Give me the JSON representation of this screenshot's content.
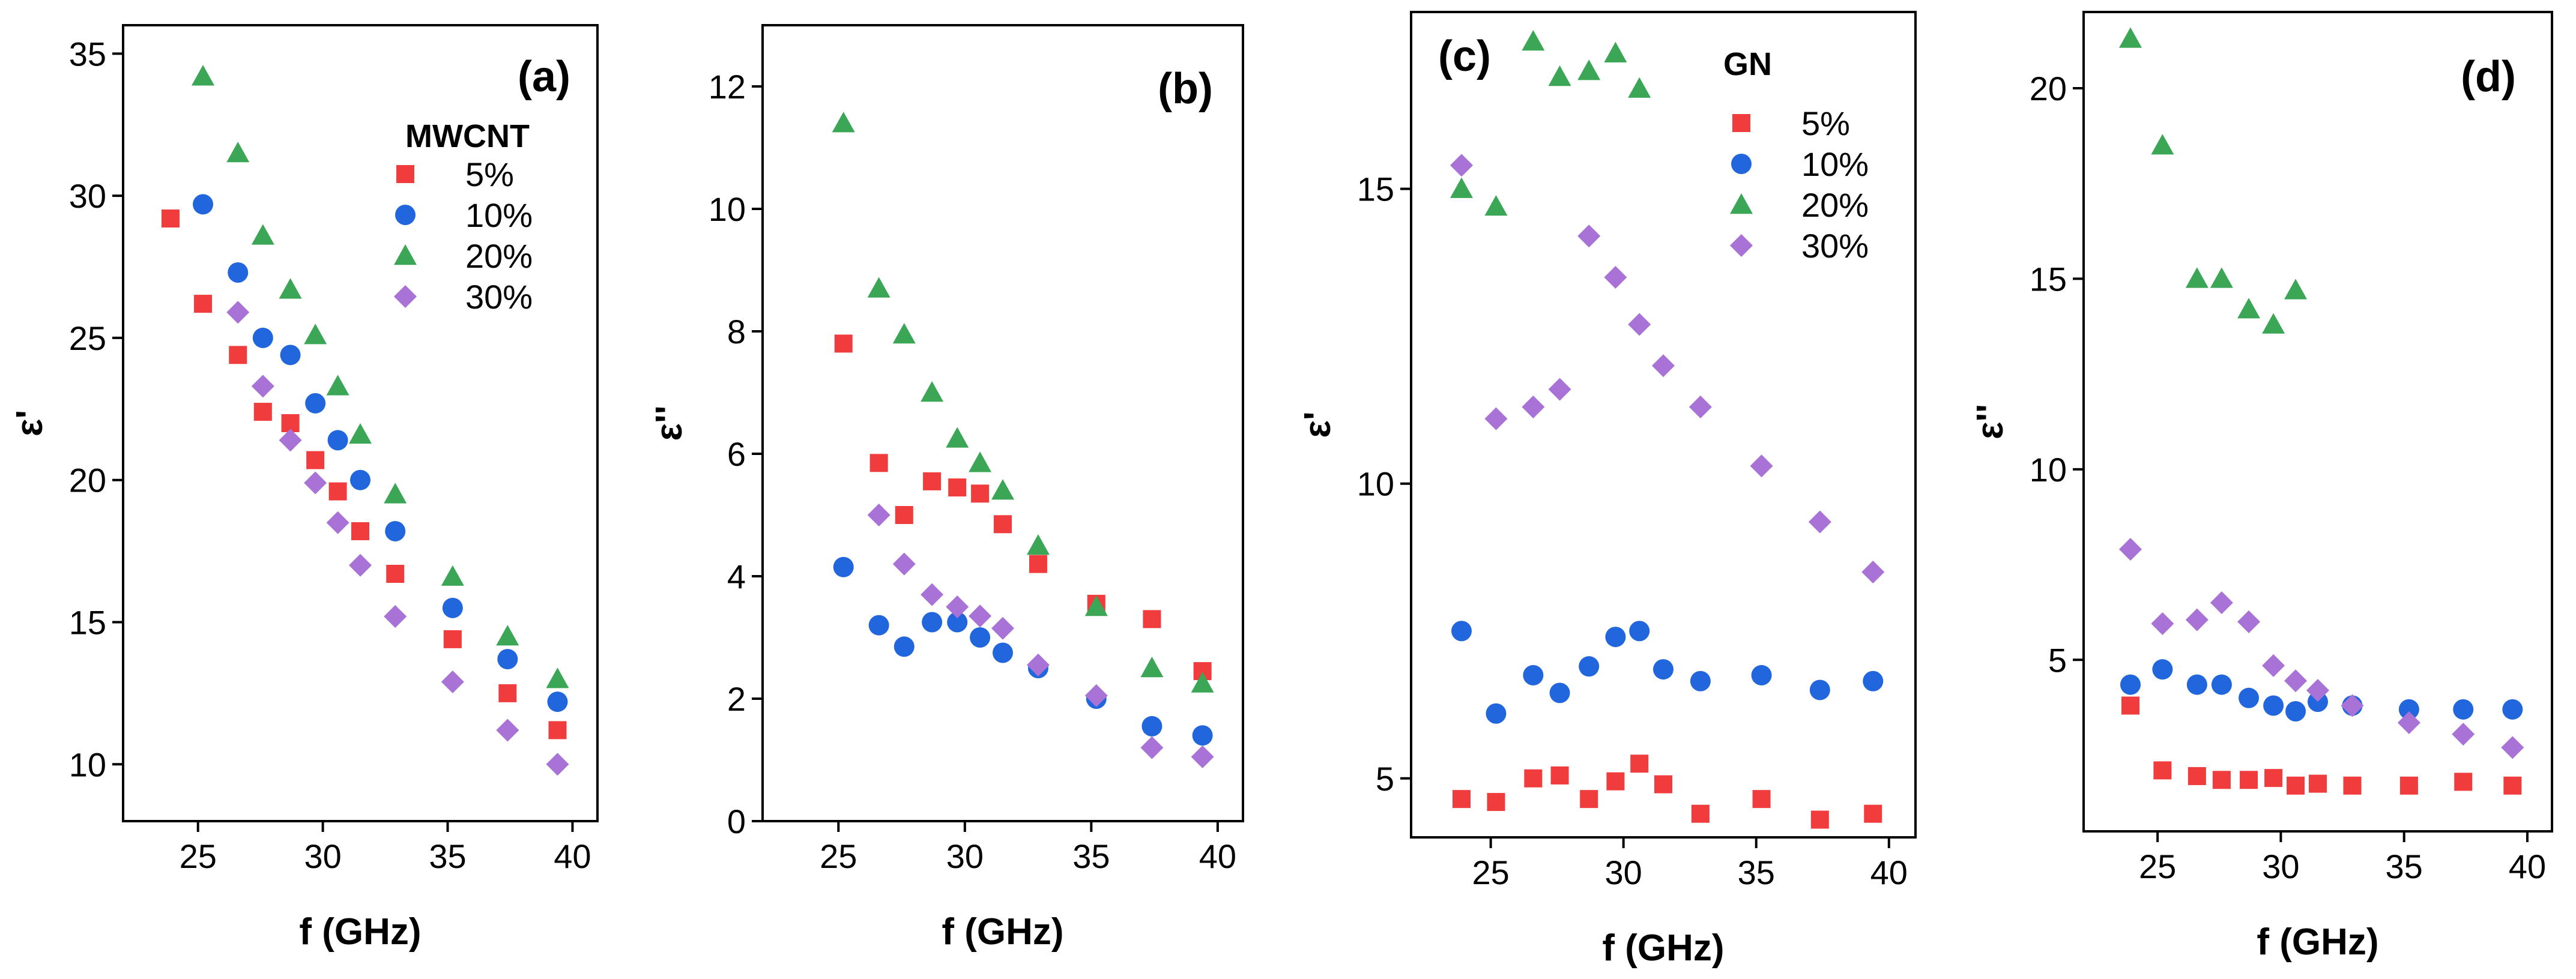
{
  "chart_data": [
    {
      "type": "scatter",
      "panel_label": "(a)",
      "xlabel": "f (GHz)",
      "ylabel": "ε'",
      "xlim": [
        22,
        41
      ],
      "ylim": [
        8,
        36
      ],
      "xticks": [
        "25",
        "30",
        "35",
        "40"
      ],
      "yticks": [
        "10",
        "15",
        "20",
        "25",
        "30",
        "35"
      ],
      "legend": {
        "title": "MWCNT",
        "entries": [
          "5%",
          "10%",
          "20%",
          "30%"
        ]
      },
      "series": [
        {
          "name": "5%",
          "marker": "square",
          "color": "#f03c3c",
          "x": [
            23.9,
            25.2,
            26.6,
            27.6,
            28.7,
            29.7,
            30.6,
            31.5,
            32.9,
            35.2,
            37.4,
            39.4
          ],
          "y": [
            29.2,
            26.2,
            24.4,
            22.4,
            22.0,
            20.7,
            19.6,
            18.2,
            16.7,
            14.4,
            12.5,
            11.2
          ]
        },
        {
          "name": "10%",
          "marker": "circle",
          "color": "#2266dd",
          "x": [
            25.2,
            26.6,
            27.6,
            28.7,
            29.7,
            30.6,
            31.5,
            32.9,
            35.2,
            37.4,
            39.4
          ],
          "y": [
            29.7,
            27.3,
            25.0,
            24.4,
            22.7,
            21.4,
            20.0,
            18.2,
            15.5,
            13.7,
            12.2
          ]
        },
        {
          "name": "20%",
          "marker": "triangle",
          "color": "#3aa656",
          "x": [
            25.2,
            26.6,
            27.6,
            28.7,
            29.7,
            30.6,
            31.5,
            32.9,
            35.2,
            37.4,
            39.4
          ],
          "y": [
            34.2,
            31.5,
            28.6,
            26.7,
            25.1,
            23.3,
            21.6,
            19.5,
            16.6,
            14.5,
            13.0
          ]
        },
        {
          "name": "30%",
          "marker": "diamond",
          "color": "#a872d6",
          "x": [
            26.6,
            27.6,
            28.7,
            29.7,
            30.6,
            31.5,
            32.9,
            35.2,
            37.4,
            39.4
          ],
          "y": [
            25.9,
            23.3,
            21.4,
            19.9,
            18.5,
            17.0,
            15.2,
            12.9,
            11.2,
            10.0
          ]
        }
      ]
    },
    {
      "type": "scatter",
      "panel_label": "(b)",
      "xlabel": "f (GHz)",
      "ylabel": "ε''",
      "xlim": [
        22,
        41
      ],
      "ylim": [
        0,
        13
      ],
      "xticks": [
        "25",
        "30",
        "35",
        "40"
      ],
      "yticks": [
        "0",
        "2",
        "4",
        "6",
        "8",
        "10",
        "12"
      ],
      "series": [
        {
          "name": "5%",
          "marker": "square",
          "color": "#f03c3c",
          "x": [
            25.2,
            26.6,
            27.6,
            28.7,
            29.7,
            30.6,
            31.5,
            32.9,
            35.2,
            37.4,
            39.4
          ],
          "y": [
            7.8,
            5.85,
            5.0,
            5.55,
            5.45,
            5.35,
            4.85,
            4.2,
            3.55,
            3.3,
            2.45
          ]
        },
        {
          "name": "10%",
          "marker": "circle",
          "color": "#2266dd",
          "x": [
            25.2,
            26.6,
            27.6,
            28.7,
            29.7,
            30.6,
            31.5,
            32.9,
            35.2,
            37.4,
            39.4
          ],
          "y": [
            4.15,
            3.2,
            2.85,
            3.25,
            3.25,
            3.0,
            2.75,
            2.5,
            2.0,
            1.55,
            1.4
          ]
        },
        {
          "name": "20%",
          "marker": "triangle",
          "color": "#3aa656",
          "x": [
            25.2,
            26.6,
            27.6,
            28.7,
            29.7,
            30.6,
            31.5,
            32.9,
            35.2,
            37.4,
            39.4
          ],
          "y": [
            11.4,
            8.7,
            7.95,
            7.0,
            6.25,
            5.85,
            5.4,
            4.5,
            3.5,
            2.5,
            2.25
          ]
        },
        {
          "name": "30%",
          "marker": "diamond",
          "color": "#a872d6",
          "x": [
            26.6,
            27.6,
            28.7,
            29.7,
            30.6,
            31.5,
            32.9,
            35.2,
            37.4,
            39.4
          ],
          "y": [
            5.0,
            4.2,
            3.7,
            3.5,
            3.35,
            3.15,
            2.55,
            2.05,
            1.2,
            1.05
          ]
        }
      ]
    },
    {
      "type": "scatter",
      "panel_label": "(c)",
      "xlabel": "f (GHz)",
      "ylabel": "ε'",
      "xlim": [
        22,
        41
      ],
      "ylim": [
        4,
        18
      ],
      "xticks": [
        "25",
        "30",
        "35",
        "40"
      ],
      "yticks": [
        "5",
        "10",
        "15"
      ],
      "legend": {
        "title": "GN",
        "entries": [
          "5%",
          "10%",
          "20%",
          "30%"
        ]
      },
      "series": [
        {
          "name": "5%",
          "marker": "square",
          "color": "#f03c3c",
          "x": [
            23.9,
            25.2,
            26.6,
            27.6,
            28.7,
            29.7,
            30.6,
            31.5,
            32.9,
            35.2,
            37.4,
            39.4
          ],
          "y": [
            4.65,
            4.6,
            5.0,
            5.05,
            4.65,
            4.95,
            5.25,
            4.9,
            4.4,
            4.65,
            4.3,
            4.4
          ]
        },
        {
          "name": "10%",
          "marker": "circle",
          "color": "#2266dd",
          "x": [
            23.9,
            25.2,
            26.6,
            27.6,
            28.7,
            29.7,
            30.6,
            31.5,
            32.9,
            35.2,
            37.4,
            39.4
          ],
          "y": [
            7.5,
            6.1,
            6.75,
            6.45,
            6.9,
            7.4,
            7.5,
            6.85,
            6.65,
            6.75,
            6.5,
            6.65
          ]
        },
        {
          "name": "20%",
          "marker": "triangle",
          "color": "#3aa656",
          "x": [
            23.9,
            25.2,
            26.6,
            27.6,
            28.7,
            29.7,
            30.6
          ],
          "y": [
            15.0,
            14.7,
            17.5,
            16.9,
            17.0,
            17.3,
            16.7
          ]
        },
        {
          "name": "30%",
          "marker": "diamond",
          "color": "#a872d6",
          "x": [
            23.9,
            25.2,
            26.6,
            27.6,
            28.7,
            29.7,
            30.6,
            31.5,
            32.9,
            35.2,
            37.4,
            39.4
          ],
          "y": [
            15.4,
            11.1,
            11.3,
            11.6,
            14.2,
            13.5,
            12.7,
            12.0,
            11.3,
            10.3,
            9.35,
            8.5
          ]
        }
      ]
    },
    {
      "type": "scatter",
      "panel_label": "(d)",
      "xlabel": "f (GHz)",
      "ylabel": "ε''",
      "xlim": [
        22,
        41
      ],
      "ylim": [
        0.5,
        22
      ],
      "xticks": [
        "25",
        "30",
        "35",
        "40"
      ],
      "yticks": [
        "5",
        "10",
        "15",
        "20"
      ],
      "series": [
        {
          "name": "5%",
          "marker": "square",
          "color": "#f03c3c",
          "x": [
            23.9,
            25.2,
            26.6,
            27.6,
            28.7,
            29.7,
            30.6,
            31.5,
            32.9,
            35.2,
            37.4,
            39.4
          ],
          "y": [
            3.8,
            2.1,
            1.95,
            1.85,
            1.85,
            1.9,
            1.7,
            1.75,
            1.7,
            1.7,
            1.8,
            1.7
          ]
        },
        {
          "name": "10%",
          "marker": "circle",
          "color": "#2266dd",
          "x": [
            23.9,
            25.2,
            26.6,
            27.6,
            28.7,
            29.7,
            30.6,
            31.5,
            32.9,
            35.2,
            37.4,
            39.4
          ],
          "y": [
            4.35,
            4.75,
            4.35,
            4.35,
            4.0,
            3.8,
            3.65,
            3.9,
            3.8,
            3.7,
            3.7,
            3.7
          ]
        },
        {
          "name": "20%",
          "marker": "triangle",
          "color": "#3aa656",
          "x": [
            23.9,
            25.2,
            26.6,
            27.6,
            28.7,
            29.7,
            30.6
          ],
          "y": [
            21.3,
            18.5,
            15.0,
            15.0,
            14.2,
            13.8,
            14.7
          ]
        },
        {
          "name": "30%",
          "marker": "diamond",
          "color": "#a872d6",
          "x": [
            23.9,
            25.2,
            26.6,
            27.6,
            28.7,
            29.7,
            30.6,
            31.5,
            32.9,
            35.2,
            37.4,
            39.4
          ],
          "y": [
            7.9,
            5.95,
            6.05,
            6.5,
            6.0,
            4.85,
            4.45,
            4.2,
            3.8,
            3.35,
            3.05,
            2.7
          ]
        }
      ]
    }
  ]
}
